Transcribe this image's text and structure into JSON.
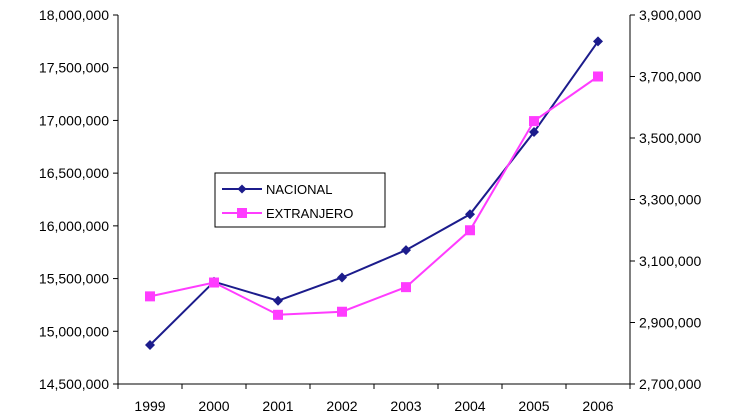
{
  "chart_data": {
    "type": "line",
    "title": "",
    "xlabel": "",
    "ylabel": "",
    "categories": [
      "1999",
      "2000",
      "2001",
      "2002",
      "2003",
      "2004",
      "2005",
      "2006"
    ],
    "y_left": {
      "ylim": [
        14500000,
        18000000
      ],
      "ticks": [
        14500000,
        15000000,
        15500000,
        16000000,
        16500000,
        17000000,
        17500000,
        18000000
      ],
      "tick_labels": [
        "14,500,000",
        "15,000,000",
        "15,500,000",
        "16,000,000",
        "16,500,000",
        "17,000,000",
        "17,500,000",
        "18,000,000"
      ]
    },
    "y_right": {
      "ylim": [
        2700000,
        3900000
      ],
      "ticks": [
        2700000,
        2900000,
        3100000,
        3300000,
        3500000,
        3700000,
        3900000
      ],
      "tick_labels": [
        "2,700,000",
        "2,900,000",
        "3,100,000",
        "3,300,000",
        "3,500,000",
        "3,700,000",
        "3,900,000"
      ]
    },
    "series": [
      {
        "name": "NACIONAL",
        "axis": "left",
        "color": "#1c1c8c",
        "marker": "diamond",
        "values": [
          14870000,
          15470000,
          15290000,
          15510000,
          15770000,
          16110000,
          16890000,
          17750000
        ]
      },
      {
        "name": "EXTRANJERO",
        "axis": "right",
        "color": "#ff3cff",
        "marker": "square",
        "values": [
          2985000,
          3030000,
          2925000,
          2935000,
          3015000,
          3200000,
          3555000,
          3700000
        ]
      }
    ],
    "grid": false,
    "legend_placement": "center-left"
  }
}
